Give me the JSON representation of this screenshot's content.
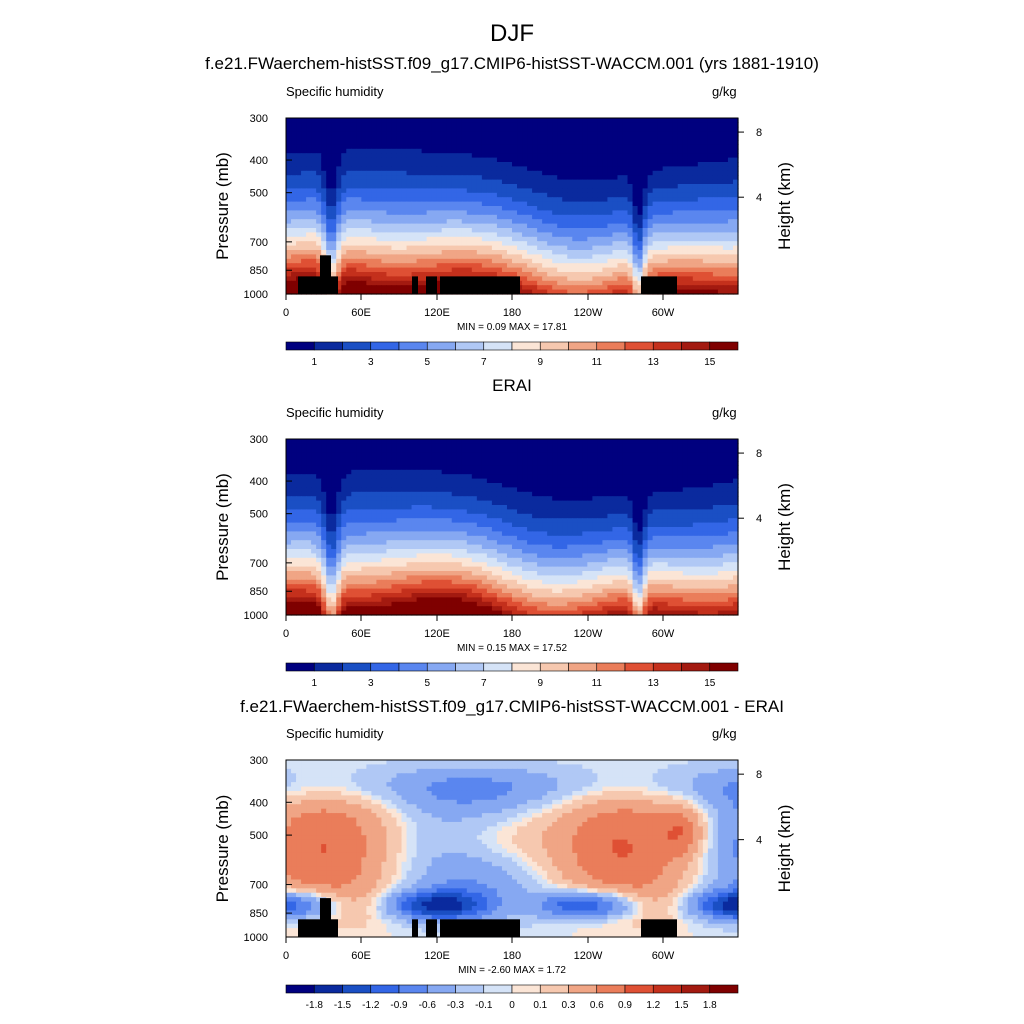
{
  "chart_data": {
    "title": "DJF",
    "colors_abs": [
      "#00007f",
      "#0a2a9e",
      "#1a4fc4",
      "#3366e6",
      "#5a86ef",
      "#86a8f2",
      "#b0c8f5",
      "#d5e3f7",
      "#fbe5d6",
      "#f6c8af",
      "#f0a585",
      "#ea7d5a",
      "#df5034",
      "#c4301c",
      "#a31a10",
      "#7f0000"
    ],
    "colors_diff": [
      "#00007f",
      "#0a2a9e",
      "#1a4fc4",
      "#3366e6",
      "#5a86ef",
      "#86a8f2",
      "#b0c8f5",
      "#d5e3f7",
      "#fbe5d6",
      "#f6c8af",
      "#f0a585",
      "#ea7d5a",
      "#df5034",
      "#c4301c",
      "#a31a10",
      "#7f0000"
    ],
    "panels": [
      {
        "id": "model",
        "type": "heatmap",
        "title": "f.e21.FWaerchem-histSST.f09_g17.CMIP6-histSST-WACCM.001 (yrs 1881-1910)",
        "left_label": "Specific humidity",
        "right_label": "g/kg",
        "ylabel": "Pressure (mb)",
        "y2label": "Height (km)",
        "xticks": [
          "0",
          "60E",
          "120E",
          "180",
          "120W",
          "60W"
        ],
        "yticks": [
          "300",
          "400",
          "500",
          "700",
          "850",
          "1000"
        ],
        "y2ticks": [
          "8",
          "4"
        ],
        "stats": "MIN =   0.09  MAX =  17.81",
        "colorbar_labels": [
          "1",
          "3",
          "5",
          "7",
          "9",
          "11",
          "13",
          "15"
        ],
        "mode": "abs",
        "seed": 1
      },
      {
        "id": "obs",
        "type": "heatmap",
        "title": "ERAI",
        "left_label": "Specific humidity",
        "right_label": "g/kg",
        "ylabel": "Pressure (mb)",
        "y2label": "Height (km)",
        "xticks": [
          "0",
          "60E",
          "120E",
          "180",
          "120W",
          "60W"
        ],
        "yticks": [
          "300",
          "400",
          "500",
          "700",
          "850",
          "1000"
        ],
        "y2ticks": [
          "8",
          "4"
        ],
        "stats": "MIN =   0.15  MAX =  17.52",
        "colorbar_labels": [
          "1",
          "3",
          "5",
          "7",
          "9",
          "11",
          "13",
          "15"
        ],
        "mode": "abs",
        "seed": 2
      },
      {
        "id": "diff",
        "type": "heatmap",
        "title": "f.e21.FWaerchem-histSST.f09_g17.CMIP6-histSST-WACCM.001 - ERAI",
        "left_label": "Specific humidity",
        "right_label": "g/kg",
        "ylabel": "Pressure (mb)",
        "y2label": "Height (km)",
        "xticks": [
          "0",
          "60E",
          "120E",
          "180",
          "120W",
          "60W"
        ],
        "yticks": [
          "300",
          "400",
          "500",
          "700",
          "850",
          "1000"
        ],
        "y2ticks": [
          "8",
          "4"
        ],
        "stats": "MIN =  -2.60  MAX =   1.72",
        "colorbar_labels": [
          "-1.8",
          "-1.5",
          "-1.2",
          "-0.9",
          "-0.6",
          "-0.3",
          "-0.1",
          "0",
          "0.1",
          "0.3",
          "0.6",
          "0.9",
          "1.2",
          "1.5",
          "1.8"
        ],
        "mode": "diff",
        "seed": 3
      }
    ]
  }
}
